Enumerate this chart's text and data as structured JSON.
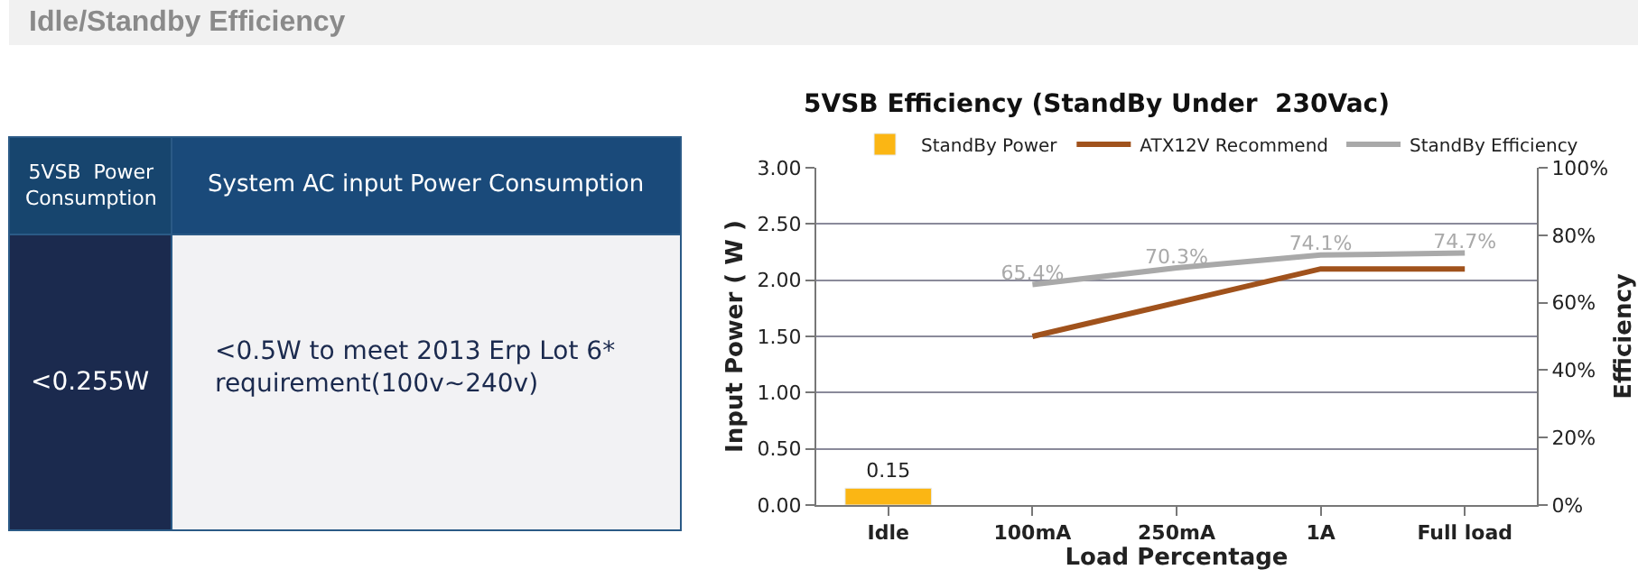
{
  "chart_data": [
    {
      "type": "other",
      "title": "Idle/Standby Efficiency",
      "annotations": [
        "5VSB  Power\nConsumption",
        "System AC input Power Consumption",
        "<0.255W",
        "<0.5W to meet 2013 Erp Lot 6*\nrequirement(100v~240v)"
      ]
    },
    {
      "type": "bar",
      "title": "5VSB Efficiency (StandBy Under  230Vac)",
      "xlabel": "Load Percentage",
      "ylabel": "Input Power ( W )",
      "y2label": "Efficiency",
      "categories": [
        "Idle",
        "100mA",
        "250mA",
        "1A",
        "Full load"
      ],
      "series": [
        {
          "name": "StandBy Power",
          "type": "bar",
          "color": "#fbb614",
          "values": [
            0.15,
            null,
            null,
            null,
            null
          ],
          "value_labels": [
            "0.15",
            null,
            null,
            null,
            null
          ]
        },
        {
          "name": "ATX12V Recommend",
          "type": "line",
          "color": "#a0521c",
          "values": [
            null,
            1.5,
            1.8,
            2.1,
            2.1
          ]
        },
        {
          "name": "StandBy Efficiency",
          "type": "line",
          "axis": "y2",
          "color": "#a9a9a9",
          "values": [
            null,
            65.4,
            70.3,
            74.1,
            74.7
          ],
          "value_labels": [
            null,
            "65.4%",
            "70.3%",
            "74.1%",
            "74.7%"
          ]
        }
      ],
      "ylim": [
        0,
        3
      ],
      "yticks": [
        {
          "value": 0,
          "label": "0.00"
        },
        {
          "value": 0.5,
          "label": "0.50"
        },
        {
          "value": 1,
          "label": "1.00"
        },
        {
          "value": 1.5,
          "label": "1.50"
        },
        {
          "value": 2,
          "label": "2.00"
        },
        {
          "value": 2.5,
          "label": "2.50"
        },
        {
          "value": 3,
          "label": "3.00"
        }
      ],
      "y2lim": [
        0,
        100
      ],
      "y2ticks": [
        {
          "value": 0,
          "label": "0%"
        },
        {
          "value": 20,
          "label": "20%"
        },
        {
          "value": 40,
          "label": "40%"
        },
        {
          "value": 60,
          "label": "60%"
        },
        {
          "value": 80,
          "label": "80%"
        },
        {
          "value": 100,
          "label": "100%"
        }
      ],
      "grid": "y",
      "legend": "top",
      "marker": "none",
      "line_style": "solid"
    }
  ]
}
